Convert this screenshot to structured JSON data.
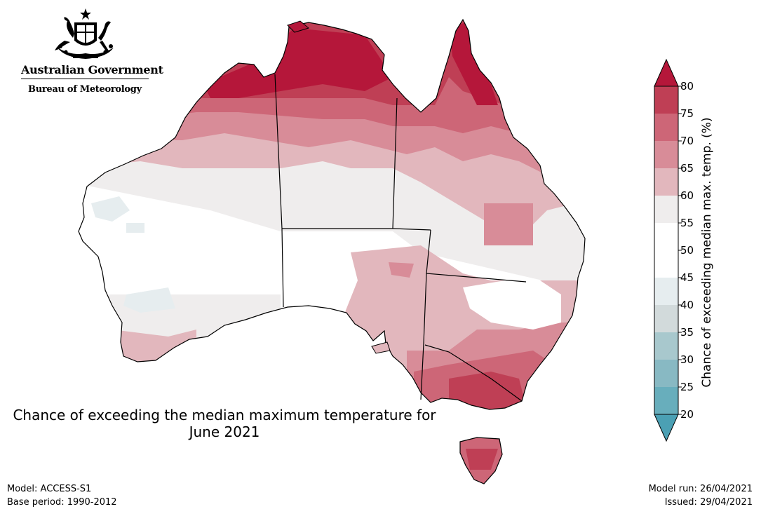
{
  "header": {
    "gov_name": "Australian Government",
    "bureau": "Bureau of Meteorology"
  },
  "map": {
    "title_line1": "Chance of exceeding the median maximum temperature for",
    "title_line2": "June 2021",
    "region": "Australia"
  },
  "legend": {
    "title": "Chance of exceeding median max. temp. (%)",
    "ticks": [
      "80",
      "75",
      "70",
      "65",
      "60",
      "55",
      "50",
      "45",
      "40",
      "35",
      "30",
      "25",
      "20"
    ],
    "bins": [
      {
        "range": "75-80",
        "color": "#bf3f55"
      },
      {
        "range": "70-75",
        "color": "#cd6677"
      },
      {
        "range": "65-70",
        "color": "#d88c98"
      },
      {
        "range": "60-65",
        "color": "#e2b7bd"
      },
      {
        "range": "55-60",
        "color": "#efeded"
      },
      {
        "range": "50-55",
        "color": "#ffffff"
      },
      {
        "range": "45-50",
        "color": "#ffffff"
      },
      {
        "range": "40-45",
        "color": "#e6edef"
      },
      {
        "range": "35-40",
        "color": "#d2dadb"
      },
      {
        "range": "30-35",
        "color": "#a8c8cd"
      },
      {
        "range": "25-30",
        "color": "#88b9c3"
      },
      {
        "range": "20-25",
        "color": "#68aebc"
      }
    ],
    "over_color": "#b5173a",
    "under_color": "#4ba0b4"
  },
  "footer": {
    "model": "Model: ACCESS-S1",
    "base_period": "Base period: 1990-2012",
    "model_run": "Model run: 26/04/2021",
    "issued": "Issued: 29/04/2021"
  }
}
